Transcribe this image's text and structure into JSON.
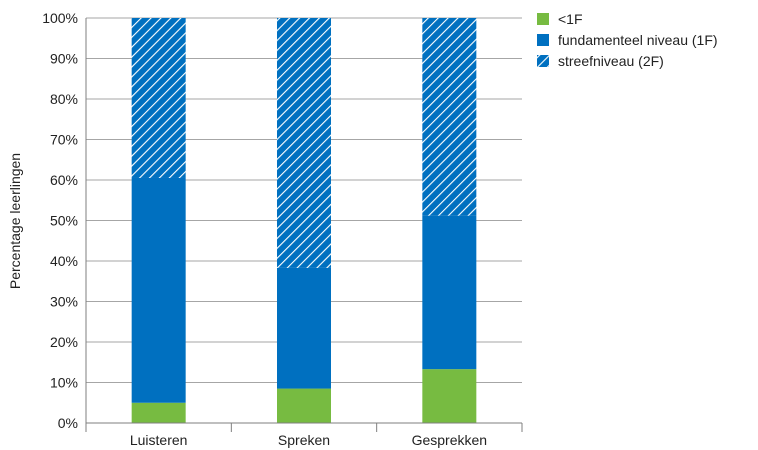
{
  "chart_data": {
    "type": "bar",
    "stacked": true,
    "categories": [
      "Luisteren",
      "Spreken",
      "Gesprekken"
    ],
    "series": [
      {
        "name": "<1F",
        "values": [
          5,
          8.5,
          13.3
        ],
        "color": "#77bb41",
        "pattern": "solid"
      },
      {
        "name": "fundamenteel niveau (1F)",
        "values": [
          55.5,
          29.8,
          37.9
        ],
        "color": "#0070c0",
        "pattern": "solid"
      },
      {
        "name": "streefniveau (2F)",
        "values": [
          39.5,
          61.7,
          48.8
        ],
        "color": "#0070c0",
        "pattern": "hatched"
      }
    ],
    "ylabel": "Percentage leerlingen",
    "ylim": [
      0,
      100
    ],
    "yticks": [
      "0%",
      "10%",
      "20%",
      "30%",
      "40%",
      "50%",
      "60%",
      "70%",
      "80%",
      "90%",
      "100%"
    ],
    "grid": true,
    "legend": "top-right"
  }
}
